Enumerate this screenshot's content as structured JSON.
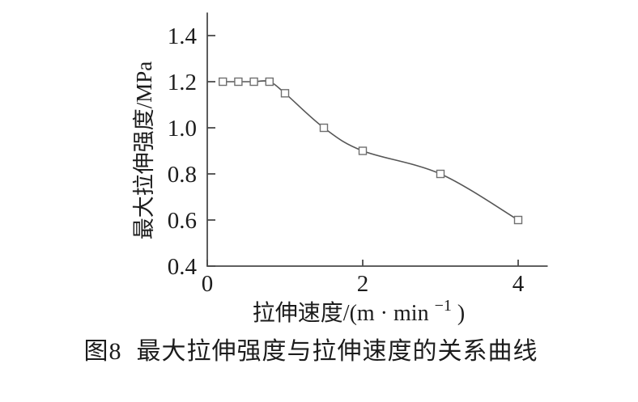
{
  "figure": {
    "caption_label": "图8",
    "caption_text": "最大拉伸强度与拉伸速度的关系曲线"
  },
  "chart_data": {
    "type": "line",
    "title": "",
    "xlabel": "拉伸速度/(m·min⁻¹)",
    "xlabel_parts": {
      "main": "拉伸速度/(m · min",
      "sup": "−1",
      "end": ")"
    },
    "ylabel": "最大拉伸强度/MPa",
    "x": [
      0.2,
      0.4,
      0.6,
      0.8,
      1.0,
      1.5,
      2.0,
      3.0,
      4.0
    ],
    "y": [
      1.2,
      1.2,
      1.2,
      1.2,
      1.15,
      1.0,
      0.9,
      0.8,
      0.6
    ],
    "xticks": [
      {
        "value": 0,
        "label": "0"
      },
      {
        "value": 2,
        "label": "2"
      },
      {
        "value": 4,
        "label": "4"
      }
    ],
    "yticks": [
      {
        "value": 0.4,
        "label": "0.4"
      },
      {
        "value": 0.6,
        "label": "0.6"
      },
      {
        "value": 0.8,
        "label": "0.8"
      },
      {
        "value": 1.0,
        "label": "1.0"
      },
      {
        "value": 1.2,
        "label": "1.2"
      },
      {
        "value": 1.4,
        "label": "1.4"
      }
    ],
    "xlim": [
      0,
      4.38
    ],
    "ylim": [
      0.4,
      1.5
    ],
    "grid": false,
    "legend": null,
    "marker": "open-square",
    "colors": {
      "axis": "#4a4a4a",
      "curve": "#565656",
      "marker_stroke": "#6f6f6f",
      "marker_fill": "#ffffff",
      "text": "#1c1c1c"
    }
  }
}
